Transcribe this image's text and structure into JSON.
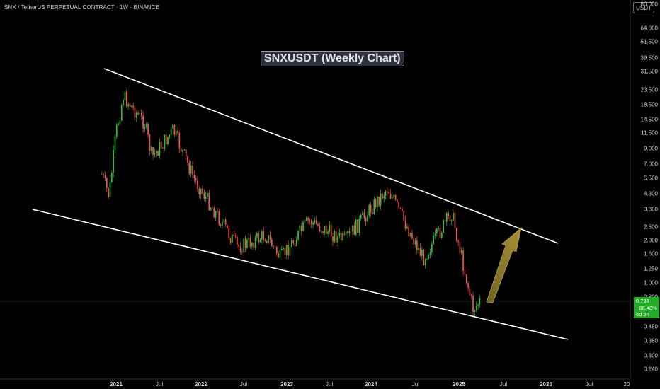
{
  "header": {
    "symbol_line": "SNX / TetherUS PERPETUAL CONTRACT · 1W · BINANCE",
    "currency": "USDT"
  },
  "annotation": {
    "title": "SNXUSDT (Weekly Chart)"
  },
  "price_axis": {
    "labels": [
      "80.000",
      "64.000",
      "51.500",
      "39.500",
      "31.500",
      "23.500",
      "18.500",
      "14.500",
      "11.500",
      "9.000",
      "7.000",
      "5.500",
      "4.300",
      "3.300",
      "2.500",
      "2.000",
      "1.600",
      "1.250",
      "1.000",
      "0.800",
      "0.480",
      "0.380",
      "0.300",
      "0.240"
    ]
  },
  "time_axis": {
    "labels": [
      "2021",
      "Jul",
      "2022",
      "Jul",
      "2023",
      "Jul",
      "2024",
      "Jul",
      "2025",
      "Jul",
      "2026",
      "Jul",
      "20"
    ],
    "year_labels": [
      "2021",
      "2022",
      "2023",
      "2024",
      "2025",
      "2026"
    ]
  },
  "last_price": {
    "price": "0.738",
    "change": "−86.48%",
    "countdown": "6d 5h"
  },
  "colors": {
    "background": "#000000",
    "up_candle": "#26a69a",
    "up_candle_bright": "#2ebd3a",
    "down_candle": "#ef5350",
    "channel_line": "#ffffff",
    "arrow_fill": "#8c7a2c",
    "last_price_line": "#22ab24",
    "last_price_badge": "#22ab24"
  },
  "chart_data": {
    "type": "candlestick",
    "scale": "log",
    "series": [
      {
        "name": "",
        "points": [
          {
            "date": "2020-11",
            "price": 6.0
          },
          {
            "date": "2020-12",
            "price": 4.2
          },
          {
            "date": "2021-01",
            "price": 12.0
          },
          {
            "date": "2021-02",
            "price": 22.0
          },
          {
            "date": "2021-05",
            "price": 14.0
          },
          {
            "date": "2021-06",
            "price": 8.0
          },
          {
            "date": "2021-09",
            "price": 12.5
          },
          {
            "date": "2021-12",
            "price": 5.5
          },
          {
            "date": "2022-06",
            "price": 1.8
          },
          {
            "date": "2022-10",
            "price": 2.2
          },
          {
            "date": "2022-12",
            "price": 1.5
          },
          {
            "date": "2023-04",
            "price": 2.8
          },
          {
            "date": "2023-09",
            "price": 2.0
          },
          {
            "date": "2024-03",
            "price": 4.8
          },
          {
            "date": "2024-08",
            "price": 1.5
          },
          {
            "date": "2024-12",
            "price": 3.2
          },
          {
            "date": "2025-03",
            "price": 0.65
          },
          {
            "date": "2025-04",
            "price": 0.738
          }
        ]
      }
    ]
  }
}
